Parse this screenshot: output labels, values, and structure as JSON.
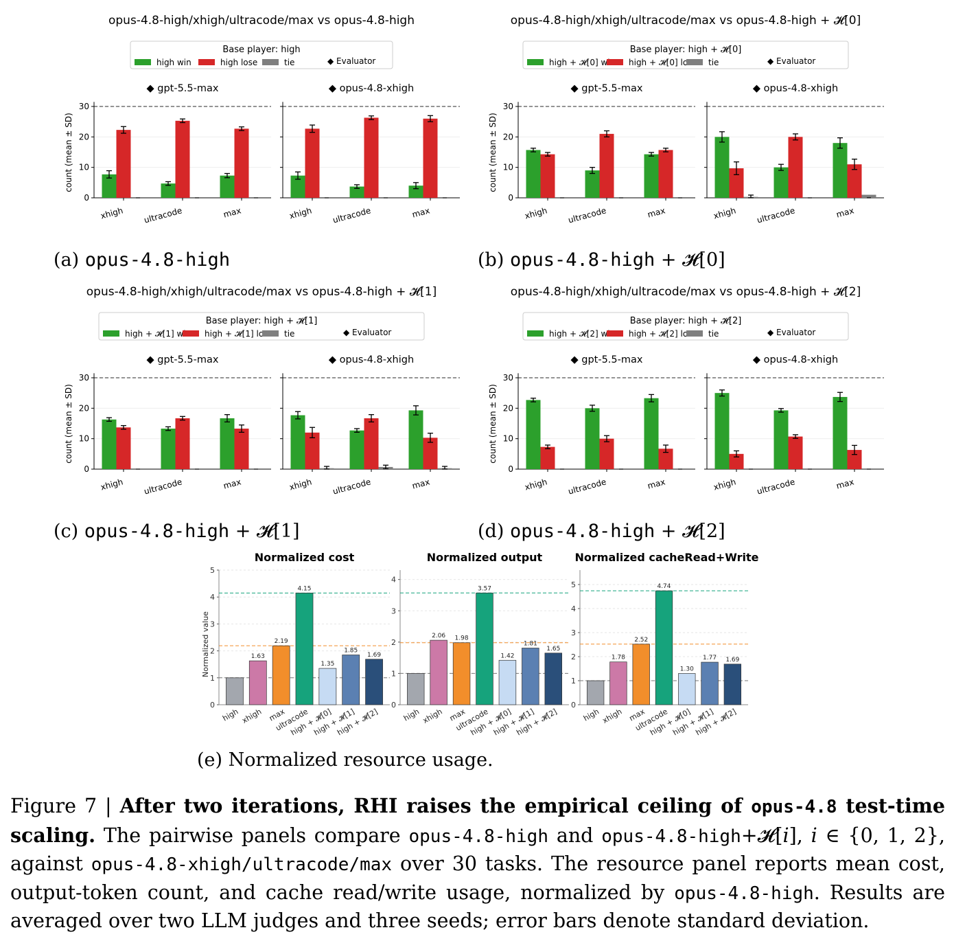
{
  "colors": {
    "win": "#2ca02c",
    "lose": "#d62728",
    "tie": "#7f7f7f"
  },
  "pairwise": [
    {
      "title": "opus-4.8-high/xhigh/ultracode/max vs opus-4.8-high",
      "legend_title": "Base player: high",
      "legend_labels": [
        "high win",
        "high lose",
        "tie",
        "◆ Evaluator"
      ],
      "subcaption_prefix": "(a)",
      "subcaption_model": "opus-4.8-high",
      "subcaption_suffix": "",
      "chart_data": {
        "type": "bar",
        "ylabel": "count (mean ± SD)",
        "ylim": [
          0,
          30
        ],
        "reference_line": 30,
        "yticks": [
          0,
          10,
          20,
          30
        ],
        "categories": [
          "xhigh",
          "ultracode",
          "max"
        ],
        "subplots": [
          {
            "evaluator": "◆ gpt-5.5-max",
            "win": [
              7.7,
              4.7,
              7.3
            ],
            "win_sd": [
              1.2,
              0.6,
              0.7
            ],
            "lose": [
              22.3,
              25.3,
              22.7
            ],
            "lose_sd": [
              1.1,
              0.6,
              0.6
            ],
            "tie": [
              0,
              0,
              0
            ],
            "tie_sd": [
              0,
              0,
              0
            ]
          },
          {
            "evaluator": "◆ opus-4.8-xhigh",
            "win": [
              7.3,
              3.7,
              4.0
            ],
            "win_sd": [
              1.2,
              0.6,
              1.0
            ],
            "lose": [
              22.7,
              26.3,
              26.0
            ],
            "lose_sd": [
              1.2,
              0.6,
              1.0
            ],
            "tie": [
              0,
              0,
              0
            ],
            "tie_sd": [
              0,
              0,
              0
            ]
          }
        ]
      }
    },
    {
      "title": "opus-4.8-high/xhigh/ultracode/max vs opus-4.8-high + 𝓗[0]",
      "legend_title": "Base player: high + 𝓗[0]",
      "legend_labels": [
        "high + 𝓗[0] win",
        "high + 𝓗[0] lose",
        "tie",
        "◆ Evaluator"
      ],
      "subcaption_prefix": "(b)",
      "subcaption_model": "opus-4.8-high",
      "subcaption_suffix": " + 𝓗[0]",
      "chart_data": {
        "type": "bar",
        "ylabel": "count (mean ± SD)",
        "ylim": [
          0,
          30
        ],
        "reference_line": 30,
        "yticks": [
          0,
          10,
          20,
          30
        ],
        "categories": [
          "xhigh",
          "ultracode",
          "max"
        ],
        "subplots": [
          {
            "evaluator": "◆ gpt-5.5-max",
            "win": [
              15.7,
              9.0,
              14.3
            ],
            "win_sd": [
              0.6,
              1.0,
              0.6
            ],
            "lose": [
              14.3,
              21.0,
              15.7
            ],
            "lose_sd": [
              0.6,
              1.0,
              0.6
            ],
            "tie": [
              0,
              0,
              0
            ],
            "tie_sd": [
              0,
              0,
              0
            ]
          },
          {
            "evaluator": "◆ opus-4.8-xhigh",
            "win": [
              20.0,
              10.0,
              18.0
            ],
            "win_sd": [
              1.7,
              1.0,
              1.7
            ],
            "lose": [
              9.7,
              20.0,
              11.0
            ],
            "lose_sd": [
              2.1,
              1.0,
              1.7
            ],
            "tie": [
              0.3,
              0,
              1.0
            ],
            "tie_sd": [
              0.6,
              0,
              0
            ]
          }
        ]
      }
    },
    {
      "title": "opus-4.8-high/xhigh/ultracode/max vs opus-4.8-high + 𝓗[1]",
      "legend_title": "Base player: high + 𝓗[1]",
      "legend_labels": [
        "high + 𝓗[1] win",
        "high + 𝓗[1] lose",
        "tie",
        "◆ Evaluator"
      ],
      "subcaption_prefix": "(c)",
      "subcaption_model": "opus-4.8-high",
      "subcaption_suffix": " + 𝓗[1]",
      "chart_data": {
        "type": "bar",
        "ylabel": "count (mean ± SD)",
        "ylim": [
          0,
          30
        ],
        "reference_line": 30,
        "yticks": [
          0,
          10,
          20,
          30
        ],
        "categories": [
          "xhigh",
          "ultracode",
          "max"
        ],
        "subplots": [
          {
            "evaluator": "◆ gpt-5.5-max",
            "win": [
              16.3,
              13.3,
              16.7
            ],
            "win_sd": [
              0.6,
              0.6,
              1.2
            ],
            "lose": [
              13.7,
              16.7,
              13.3
            ],
            "lose_sd": [
              0.6,
              0.6,
              1.2
            ],
            "tie": [
              0,
              0,
              0
            ],
            "tie_sd": [
              0,
              0,
              0
            ]
          },
          {
            "evaluator": "◆ opus-4.8-xhigh",
            "win": [
              17.7,
              12.7,
              19.3
            ],
            "win_sd": [
              1.2,
              0.6,
              1.5
            ],
            "lose": [
              12.0,
              16.7,
              10.3
            ],
            "lose_sd": [
              1.7,
              1.2,
              1.5
            ],
            "tie": [
              0.3,
              0.7,
              0.3
            ],
            "tie_sd": [
              0.6,
              0.6,
              0.6
            ]
          }
        ]
      }
    },
    {
      "title": "opus-4.8-high/xhigh/ultracode/max vs opus-4.8-high + 𝓗[2]",
      "legend_title": "Base player: high + 𝓗[2]",
      "legend_labels": [
        "high + 𝓗[2] win",
        "high + 𝓗[2] lose",
        "tie",
        "◆ Evaluator"
      ],
      "subcaption_prefix": "(d)",
      "subcaption_model": "opus-4.8-high",
      "subcaption_suffix": " + 𝓗[2]",
      "chart_data": {
        "type": "bar",
        "ylabel": "count (mean ± SD)",
        "ylim": [
          0,
          30
        ],
        "reference_line": 30,
        "yticks": [
          0,
          10,
          20,
          30
        ],
        "categories": [
          "xhigh",
          "ultracode",
          "max"
        ],
        "subplots": [
          {
            "evaluator": "◆ gpt-5.5-max",
            "win": [
              22.7,
              20.0,
              23.3
            ],
            "win_sd": [
              0.6,
              1.0,
              1.2
            ],
            "lose": [
              7.3,
              10.0,
              6.7
            ],
            "lose_sd": [
              0.6,
              1.0,
              1.2
            ],
            "tie": [
              0,
              0,
              0
            ],
            "tie_sd": [
              0,
              0,
              0
            ]
          },
          {
            "evaluator": "◆ opus-4.8-xhigh",
            "win": [
              25.0,
              19.3,
              23.7
            ],
            "win_sd": [
              1.0,
              0.6,
              1.5
            ],
            "lose": [
              5.0,
              10.7,
              6.3
            ],
            "lose_sd": [
              1.0,
              0.6,
              1.5
            ],
            "tie": [
              0,
              0,
              0
            ],
            "tie_sd": [
              0,
              0,
              0
            ]
          }
        ]
      }
    }
  ],
  "resource": {
    "subcaption_prefix": "(e)",
    "subcaption_text": "Normalized resource usage.",
    "chart_data": {
      "type": "bar",
      "ylabel": "Normalized value",
      "categories": [
        "high",
        "xhigh",
        "max",
        "ultracode",
        "high + 𝓗[0]",
        "high + 𝓗[1]",
        "high + 𝓗[2]"
      ],
      "bar_colors": [
        "#a3a7ae",
        "#cc79a7",
        "#f28e2b",
        "#16a37c",
        "#c6dbf3",
        "#5b80b2",
        "#2a4f7a"
      ],
      "reference_lines": [
        {
          "value": 1,
          "color": "#777777"
        }
      ],
      "panels": [
        {
          "title": "Normalized cost",
          "values": [
            1.0,
            1.63,
            2.19,
            4.15,
            1.35,
            1.85,
            1.69
          ],
          "labels": [
            "",
            "1.63",
            "2.19",
            "4.15",
            "1.35",
            "1.85",
            "1.69"
          ],
          "ylim": [
            0,
            5
          ],
          "yticks": [
            0,
            1,
            2,
            3,
            4,
            5
          ]
        },
        {
          "title": "Normalized output",
          "values": [
            1.0,
            2.06,
            1.98,
            3.57,
            1.42,
            1.81,
            1.65
          ],
          "labels": [
            "",
            "2.06",
            "1.98",
            "3.57",
            "1.42",
            "1.81",
            "1.65"
          ],
          "ylim": [
            0,
            4.3
          ],
          "yticks": [
            0,
            1,
            2,
            3,
            4
          ]
        },
        {
          "title": "Normalized cacheRead+Write",
          "values": [
            1.0,
            1.78,
            2.52,
            4.74,
            1.3,
            1.77,
            1.69
          ],
          "labels": [
            "",
            "1.78",
            "2.52",
            "4.74",
            "1.30",
            "1.77",
            "1.69"
          ],
          "ylim": [
            0,
            5.6
          ],
          "yticks": [
            0,
            1,
            2,
            3,
            4,
            5
          ]
        }
      ]
    }
  },
  "caption": {
    "figure_label": "Figure 7 | ",
    "bold_1": "After two iterations, RHI raises the empirical ceiling of ",
    "bold_mono": "opus-4.8",
    "bold_2": " test-time scaling.",
    "t1": " The pairwise panels compare ",
    "m1": "opus-4.8-high",
    "t2": " and ",
    "m2": "opus-4.8-high",
    "t3": "+𝓗[",
    "i1": "i",
    "t4": "], ",
    "i2": "i",
    "t5": " ∈ {0, 1, 2}, against ",
    "m3": "opus-4.8-xhigh/ultracode/max",
    "t6": " over 30 tasks. The resource panel reports mean cost, output-token count, and cache read/write usage, normalized by ",
    "m4": "opus-4.8-high",
    "t7": ". Results are averaged over two LLM judges and three seeds; error bars denote standard deviation."
  }
}
